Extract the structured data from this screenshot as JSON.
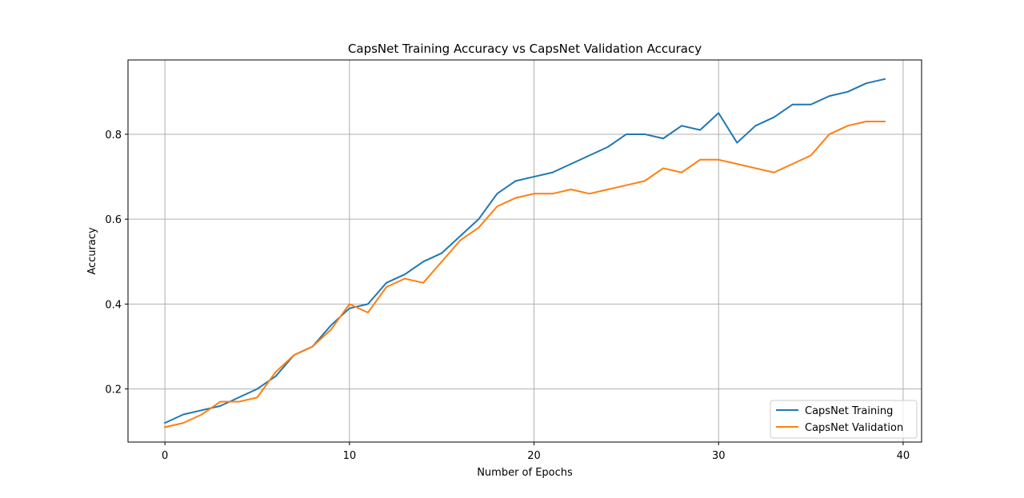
{
  "chart_data": {
    "type": "line",
    "title": "CapsNet Training Accuracy vs CapsNet Validation Accuracy",
    "xlabel": "Number of Epochs",
    "ylabel": "Accuracy",
    "xlim": [
      -2,
      41
    ],
    "ylim": [
      0.075,
      0.975
    ],
    "xticks": [
      0,
      10,
      20,
      30,
      40
    ],
    "yticks": [
      0.2,
      0.4,
      0.6,
      0.8
    ],
    "ytick_labels": [
      "0.2",
      "0.4",
      "0.6",
      "0.8"
    ],
    "grid": true,
    "legend_position": "lower-right",
    "x": [
      0,
      1,
      2,
      3,
      4,
      5,
      6,
      7,
      8,
      9,
      10,
      11,
      12,
      13,
      14,
      15,
      16,
      17,
      18,
      19,
      20,
      21,
      22,
      23,
      24,
      25,
      26,
      27,
      28,
      29,
      30,
      31,
      32,
      33,
      34,
      35,
      36,
      37,
      38,
      39
    ],
    "series": [
      {
        "name": "CapsNet Training",
        "color": "#1f77b4",
        "values": [
          0.12,
          0.14,
          0.15,
          0.16,
          0.18,
          0.2,
          0.23,
          0.28,
          0.3,
          0.35,
          0.39,
          0.4,
          0.45,
          0.47,
          0.5,
          0.52,
          0.56,
          0.6,
          0.66,
          0.69,
          0.7,
          0.71,
          0.73,
          0.75,
          0.77,
          0.8,
          0.8,
          0.79,
          0.82,
          0.81,
          0.85,
          0.78,
          0.82,
          0.84,
          0.87,
          0.87,
          0.89,
          0.9,
          0.92,
          0.93
        ]
      },
      {
        "name": "CapsNet Validation",
        "color": "#ff7f0e",
        "values": [
          0.11,
          0.12,
          0.14,
          0.17,
          0.17,
          0.18,
          0.24,
          0.28,
          0.3,
          0.34,
          0.4,
          0.38,
          0.44,
          0.46,
          0.45,
          0.5,
          0.55,
          0.58,
          0.63,
          0.65,
          0.66,
          0.66,
          0.67,
          0.66,
          0.67,
          0.68,
          0.69,
          0.72,
          0.71,
          0.74,
          0.74,
          0.73,
          0.72,
          0.71,
          0.73,
          0.75,
          0.8,
          0.82,
          0.83,
          0.83
        ]
      }
    ]
  }
}
